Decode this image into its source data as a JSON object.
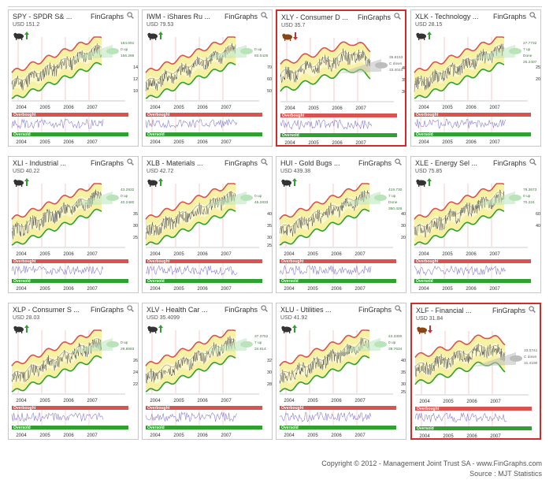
{
  "brand": "FinGraphs",
  "footer": {
    "copyright": "Copyright © 2012 - Management Joint Trust SA - www.FinGraphs.com",
    "source": "Source : MJT Statistics"
  },
  "labels": {
    "overbought": "Overbought",
    "oversold": "Oversold"
  },
  "colors": {
    "band_top": "#d9534f",
    "band_bottom": "#2ea12e",
    "band_fill": "#f6ef9a",
    "highlight": "#d42a2a",
    "rsi": "#8a7fd6"
  },
  "chart_data": [
    {
      "type": "line",
      "ticker": "SPY",
      "title": "SPY - SPDR S& ...",
      "price": "USD 151.2",
      "trend": "up",
      "highlight": false,
      "x_labels": [
        "2004",
        "2005",
        "2006",
        "2007"
      ],
      "y_ticks": [
        "140",
        "120",
        "100"
      ],
      "y_range": [
        90,
        175
      ],
      "callout": {
        "upper": "184.091",
        "direction": "0 up",
        "lower": "156.286"
      }
    },
    {
      "type": "line",
      "ticker": "IWM",
      "title": "IWM - iShares Ru ...",
      "price": "USD 79.53",
      "trend": "up",
      "highlight": false,
      "x_labels": [
        "2004",
        "2005",
        "2006",
        "2007"
      ],
      "y_ticks": [
        "70",
        "60",
        "50"
      ],
      "y_range": [
        45,
        90
      ],
      "callout": {
        "upper": "",
        "direction": "0 up",
        "lower": "83.0426"
      }
    },
    {
      "type": "line",
      "ticker": "XLY",
      "title": "XLY - Consumer D ...",
      "price": "USD 35.7",
      "trend": "down",
      "highlight": true,
      "x_labels": [
        "2004",
        "2005",
        "2006",
        "2007"
      ],
      "y_ticks": [
        "40",
        "35",
        "30"
      ],
      "y_range": [
        27,
        42
      ],
      "callout": {
        "upper": "35.8153",
        "direction": "C down",
        "lower": "33.4044"
      }
    },
    {
      "type": "line",
      "ticker": "XLK",
      "title": "XLK - Technology ...",
      "price": "USD 28.15",
      "trend": "up",
      "highlight": false,
      "x_labels": [
        "2004",
        "2005",
        "2006",
        "2007"
      ],
      "y_ticks": [
        "25",
        "20"
      ],
      "y_range": [
        17,
        31
      ],
      "callout": {
        "upper": "27.7732",
        "direction": "7 up",
        "lower": "25.2407",
        "extra": "Done"
      }
    },
    {
      "type": "line",
      "ticker": "XLI",
      "title": "XLI - Industrial ...",
      "price": "USD 40.22",
      "trend": "up",
      "highlight": false,
      "x_labels": [
        "2004",
        "2005",
        "2006",
        "2007"
      ],
      "y_ticks": [
        "35",
        "30",
        "25"
      ],
      "y_range": [
        22,
        44
      ],
      "callout": {
        "upper": "43.2932",
        "direction": "0 up",
        "lower": "40.2460"
      }
    },
    {
      "type": "line",
      "ticker": "XLB",
      "title": "XLB - Materials ...",
      "price": "USD 42.72",
      "trend": "up",
      "highlight": false,
      "x_labels": [
        "2004",
        "2005",
        "2006",
        "2007"
      ],
      "y_ticks": [
        "40",
        "35",
        "30",
        "25"
      ],
      "y_range": [
        22,
        47
      ],
      "callout": {
        "upper": "",
        "direction": "0 up",
        "lower": "45.2833"
      }
    },
    {
      "type": "line",
      "ticker": "HUI",
      "title": "HUI - Gold Bugs ...",
      "price": "USD 439.38",
      "trend": "up",
      "highlight": false,
      "x_labels": [
        "2004",
        "2005",
        "2006",
        "2007"
      ],
      "y_ticks": [
        "400",
        "300",
        "200"
      ],
      "y_range": [
        170,
        470
      ],
      "callout": {
        "upper": "419.730",
        "direction": "7 up",
        "lower": "350.426",
        "extra": "Done"
      }
    },
    {
      "type": "line",
      "ticker": "XLE",
      "title": "XLE - Energy Sel ...",
      "price": "USD 75.85",
      "trend": "up",
      "highlight": false,
      "x_labels": [
        "2004",
        "2005",
        "2006",
        "2007"
      ],
      "y_ticks": [
        "60",
        "40"
      ],
      "y_range": [
        22,
        85
      ],
      "callout": {
        "upper": "78.3673",
        "direction": "0 up",
        "lower": "70.224"
      }
    },
    {
      "type": "line",
      "ticker": "XLP",
      "title": "XLP - Consumer S ...",
      "price": "USD 28.03",
      "trend": "up",
      "highlight": false,
      "x_labels": [
        "2004",
        "2005",
        "2006",
        "2007"
      ],
      "y_ticks": [
        "26",
        "24",
        "22"
      ],
      "y_range": [
        20,
        30
      ],
      "callout": {
        "upper": "",
        "direction": "0 up",
        "lower": "29.8683"
      }
    },
    {
      "type": "line",
      "ticker": "XLV",
      "title": "XLV - Health Car ...",
      "price": "USD 35.4099",
      "trend": "up",
      "highlight": false,
      "x_labels": [
        "2004",
        "2005",
        "2006",
        "2007"
      ],
      "y_ticks": [
        "32",
        "30",
        "28"
      ],
      "y_range": [
        26,
        38
      ],
      "callout": {
        "upper": "37.3752",
        "direction": "7 up",
        "lower": "34.614"
      }
    },
    {
      "type": "line",
      "ticker": "XLU",
      "title": "XLU - Utilities ...",
      "price": "USD 41.92",
      "trend": "up",
      "highlight": false,
      "x_labels": [
        "2004",
        "2005",
        "2006",
        "2007"
      ],
      "y_ticks": [
        "40",
        "35",
        "30",
        "25"
      ],
      "y_range": [
        20,
        47
      ],
      "callout": {
        "upper": "43.3300",
        "direction": "0 up",
        "lower": "39.7634"
      }
    },
    {
      "type": "line",
      "ticker": "XLF",
      "title": "XLF - Financial ...",
      "price": "USD 31.84",
      "trend": "down",
      "highlight": true,
      "x_labels": [
        "2004",
        "2005",
        "2006",
        "2007"
      ],
      "y_ticks": [],
      "y_range": [
        24,
        40
      ],
      "callout": {
        "upper": "33.0741",
        "direction": "C down",
        "lower": "31.4190"
      }
    }
  ]
}
